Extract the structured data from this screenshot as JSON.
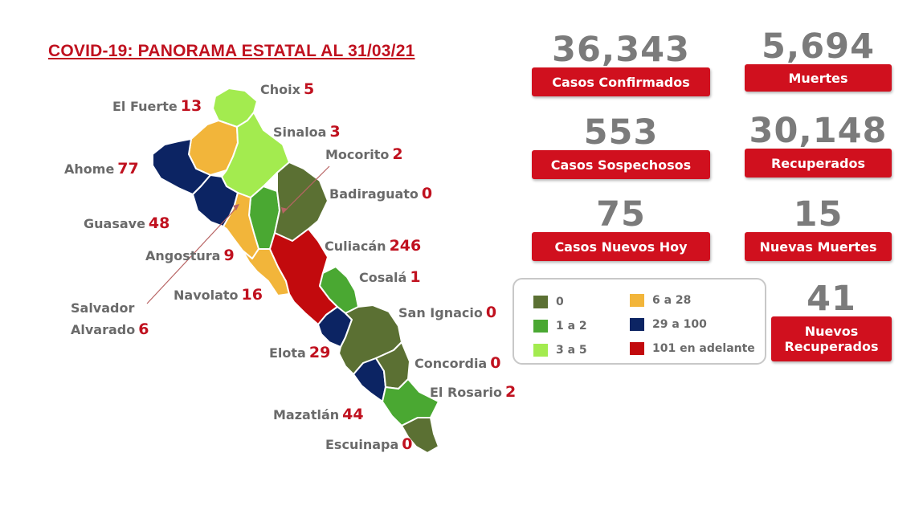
{
  "title": "COVID-19: PANORAMA ESTATAL AL 31/03/21",
  "colors": {
    "c0": "#5b7033",
    "c1_2": "#4aa832",
    "c3_5": "#a3eb4f",
    "c6_28": "#f2b53a",
    "c29_100": "#0c2463",
    "c101": "#c20a0d",
    "accent": "#d0101e"
  },
  "municipalities": [
    {
      "name": "Choix",
      "cases": "5"
    },
    {
      "name": "El Fuerte",
      "cases": "13"
    },
    {
      "name": "Sinaloa",
      "cases": "3"
    },
    {
      "name": "Mocorito",
      "cases": "2"
    },
    {
      "name": "Ahome",
      "cases": "77"
    },
    {
      "name": "Badiraguato",
      "cases": "0"
    },
    {
      "name": "Guasave",
      "cases": "48"
    },
    {
      "name": "Culiacán",
      "cases": "246"
    },
    {
      "name": "Angostura",
      "cases": "9"
    },
    {
      "name": "Cosalá",
      "cases": "1"
    },
    {
      "name": "Navolato",
      "cases": "16"
    },
    {
      "name": "San Ignacio",
      "cases": "0"
    },
    {
      "name": "Salvador",
      "cases": ""
    },
    {
      "name": "Alvarado",
      "cases": "6"
    },
    {
      "name": "Elota",
      "cases": "29"
    },
    {
      "name": "Concordia",
      "cases": "0"
    },
    {
      "name": "El Rosario",
      "cases": "2"
    },
    {
      "name": "Mazatlán",
      "cases": "44"
    },
    {
      "name": "Escuinapa",
      "cases": "0"
    }
  ],
  "stats": {
    "confirmados": {
      "value": "36,343",
      "label": "Casos Confirmados"
    },
    "muertes": {
      "value": "5,694",
      "label": "Muertes"
    },
    "sospechosos": {
      "value": "553",
      "label": "Casos Sospechosos"
    },
    "recuperados": {
      "value": "30,148",
      "label": "Recuperados"
    },
    "nuevos_hoy": {
      "value": "75",
      "label": "Casos Nuevos Hoy"
    },
    "nuevas_muertes": {
      "value": "15",
      "label": "Nuevas Muertes"
    },
    "nuevos_recuperados": {
      "value": "41",
      "label_line1": "Nuevos",
      "label_line2": "Recuperados"
    }
  },
  "legend": [
    {
      "label": "0",
      "color": "#5b7033"
    },
    {
      "label": "1 a 2",
      "color": "#4aa832"
    },
    {
      "label": "3 a 5",
      "color": "#a3eb4f"
    },
    {
      "label": "6 a 28",
      "color": "#f2b53a"
    },
    {
      "label": "29 a 100",
      "color": "#0c2463"
    },
    {
      "label": "101 en adelante",
      "color": "#c20a0d"
    }
  ]
}
